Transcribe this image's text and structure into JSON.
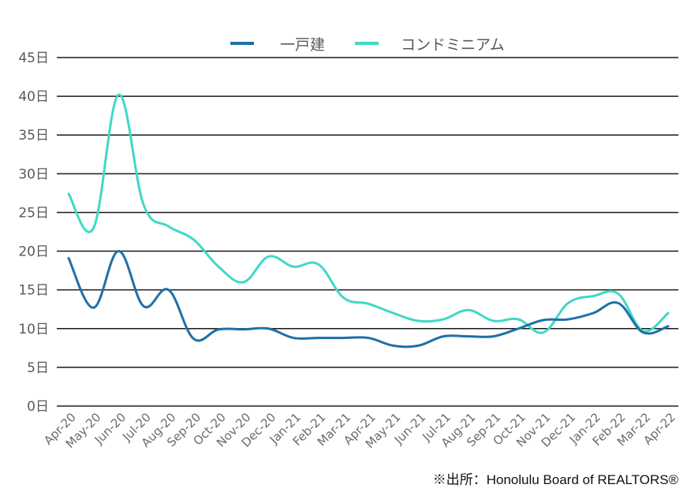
{
  "chart_data": {
    "type": "line",
    "title": "",
    "xlabel": "",
    "ylabel": "",
    "ylim": [
      0,
      45
    ],
    "yticks": [
      0,
      5,
      10,
      15,
      20,
      25,
      30,
      35,
      40,
      45
    ],
    "ytick_labels": [
      "0日",
      "5日",
      "10日",
      "15日",
      "20日",
      "25日",
      "30日",
      "35日",
      "40日",
      "45日"
    ],
    "grid": true,
    "legend_position": "top-center",
    "categories": [
      "Apr-20",
      "May-20",
      "Jun-20",
      "Jul-20",
      "Aug-20",
      "Sep-20",
      "Oct-20",
      "Nov-20",
      "Dec-20",
      "Jan-21",
      "Feb-21",
      "Mar-21",
      "Apr-21",
      "May-21",
      "Jun-21",
      "Jul-21",
      "Aug-21",
      "Sep-21",
      "Oct-21",
      "Nov-21",
      "Dec-21",
      "Jan-22",
      "Feb-22",
      "Mar-22",
      "Apr-22"
    ],
    "series": [
      {
        "name": "一戸建",
        "color": "#1f6fa8",
        "values": [
          19.1,
          12.7,
          20.0,
          12.9,
          15.0,
          8.7,
          9.9,
          9.9,
          10.0,
          8.8,
          8.8,
          8.8,
          8.8,
          7.8,
          7.8,
          9.0,
          9.0,
          9.0,
          10.0,
          11.1,
          11.2,
          12.0,
          13.3,
          9.5,
          10.3
        ]
      },
      {
        "name": "コンドミニアム",
        "color": "#3fd8c8",
        "values": [
          27.4,
          23.0,
          40.2,
          26.0,
          23.2,
          21.5,
          18.0,
          16.0,
          19.3,
          18.0,
          18.3,
          14.0,
          13.2,
          12.0,
          11.0,
          11.2,
          12.4,
          11.0,
          11.2,
          9.5,
          13.3,
          14.2,
          14.5,
          9.7,
          12.0
        ]
      }
    ],
    "source": "※出所：Honolulu Board of REALTORS®"
  }
}
